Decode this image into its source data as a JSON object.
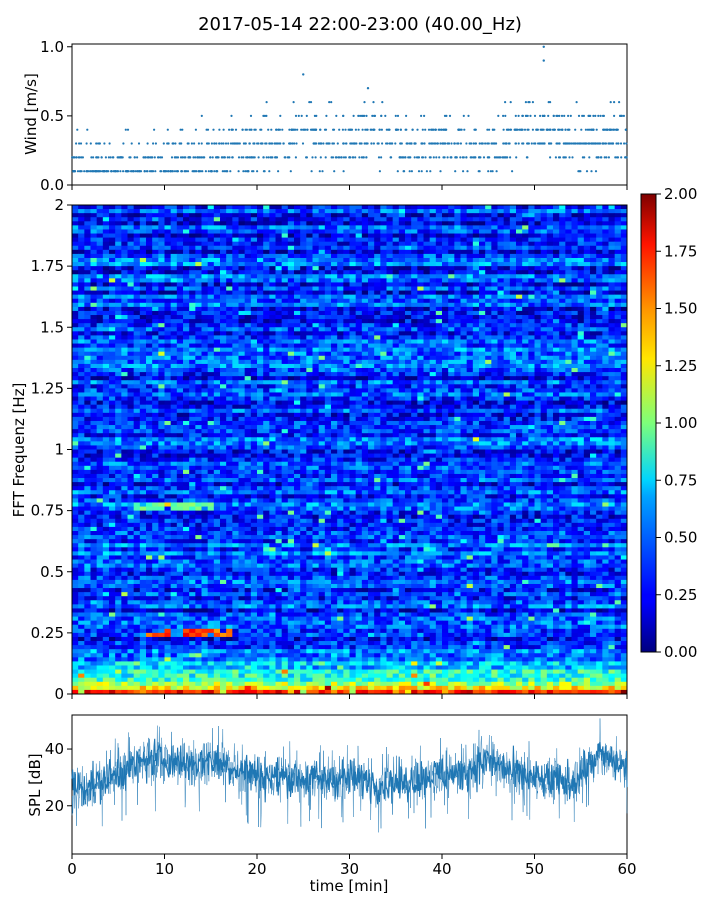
{
  "title": "2017-05-14 22:00-23:00 (40.00_Hz)",
  "chart_data": [
    {
      "type": "scatter",
      "panel": "wind",
      "ylabel": "Wind [m/s]",
      "xlabel": "",
      "xlim": [
        0,
        60
      ],
      "ylim": [
        0,
        1.02
      ],
      "yticks": [
        0.0,
        0.5,
        1.0
      ],
      "ytick_labels": [
        "0.0",
        "0.5",
        "1.0"
      ],
      "color": "#1f77b4",
      "trend": [
        {
          "x": 0,
          "y": 0.12
        },
        {
          "x": 5,
          "y": 0.13
        },
        {
          "x": 10,
          "y": 0.14
        },
        {
          "x": 15,
          "y": 0.2
        },
        {
          "x": 20,
          "y": 0.28
        },
        {
          "x": 25,
          "y": 0.35
        },
        {
          "x": 30,
          "y": 0.3
        },
        {
          "x": 33,
          "y": 0.38
        },
        {
          "x": 36,
          "y": 0.27
        },
        {
          "x": 40,
          "y": 0.3
        },
        {
          "x": 45,
          "y": 0.28
        },
        {
          "x": 50,
          "y": 0.45
        },
        {
          "x": 55,
          "y": 0.33
        },
        {
          "x": 60,
          "y": 0.35
        }
      ],
      "max_points": [
        {
          "x": 25,
          "y": 0.8
        },
        {
          "x": 32,
          "y": 0.7
        },
        {
          "x": 51,
          "y": 1.0
        },
        {
          "x": 51,
          "y": 0.9
        }
      ]
    },
    {
      "type": "heatmap",
      "panel": "spectrogram",
      "ylabel": "FFT Frequenz [Hz]",
      "xlabel": "",
      "xlim": [
        0,
        60
      ],
      "ylim": [
        0,
        2
      ],
      "yticks": [
        0,
        0.25,
        0.5,
        0.75,
        1,
        1.25,
        1.5,
        1.75,
        2
      ],
      "ytick_labels": [
        "0",
        "0.25",
        "0.5",
        "0.75",
        "1",
        "1.25",
        "1.5",
        "1.75",
        "2"
      ],
      "colormap": "jet",
      "clim": [
        0.0,
        2.0
      ],
      "colorbar_ticks": [
        0.0,
        0.25,
        0.5,
        0.75,
        1.0,
        1.25,
        1.5,
        1.75,
        2.0
      ],
      "colorbar_labels": [
        "0.00",
        "0.25",
        "0.50",
        "0.75",
        "1.00",
        "1.25",
        "1.50",
        "1.75",
        "2.00"
      ],
      "typical_value": 0.35,
      "hotspots": [
        {
          "t0": 8,
          "t1": 17,
          "f": 0.25,
          "value": 1.7
        },
        {
          "t0": 7,
          "t1": 15,
          "f": 0.77,
          "value": 1.0
        },
        {
          "t0": 0,
          "t1": 60,
          "f": 0.0,
          "value": 1.8
        }
      ]
    },
    {
      "type": "line",
      "panel": "spl",
      "ylabel": "SPL [dB]",
      "xlabel": "time [min]",
      "xlim": [
        0,
        60
      ],
      "ylim": [
        3,
        52
      ],
      "yticks": [
        20,
        40
      ],
      "ytick_labels": [
        "20",
        "40"
      ],
      "xticks": [
        0,
        10,
        20,
        30,
        40,
        50,
        60
      ],
      "xtick_labels": [
        "0",
        "10",
        "20",
        "30",
        "40",
        "50",
        "60"
      ],
      "color": "#1f77b4",
      "envelope": [
        {
          "x": 0,
          "mean": 27,
          "low": 15,
          "high": 37
        },
        {
          "x": 3,
          "mean": 28,
          "low": 16,
          "high": 38
        },
        {
          "x": 6,
          "mean": 33,
          "low": 22,
          "high": 42
        },
        {
          "x": 9,
          "mean": 37,
          "low": 26,
          "high": 46
        },
        {
          "x": 12,
          "mean": 35,
          "low": 24,
          "high": 44
        },
        {
          "x": 15,
          "mean": 36,
          "low": 25,
          "high": 45
        },
        {
          "x": 18,
          "mean": 33,
          "low": 22,
          "high": 42
        },
        {
          "x": 21,
          "mean": 30,
          "low": 19,
          "high": 39
        },
        {
          "x": 24,
          "mean": 30,
          "low": 20,
          "high": 39
        },
        {
          "x": 27,
          "mean": 29,
          "low": 18,
          "high": 38
        },
        {
          "x": 30,
          "mean": 30,
          "low": 19,
          "high": 39
        },
        {
          "x": 33,
          "mean": 28,
          "low": 18,
          "high": 37
        },
        {
          "x": 36,
          "mean": 28,
          "low": 17,
          "high": 37
        },
        {
          "x": 39,
          "mean": 31,
          "low": 21,
          "high": 40
        },
        {
          "x": 42,
          "mean": 31,
          "low": 21,
          "high": 40
        },
        {
          "x": 45,
          "mean": 36,
          "low": 25,
          "high": 45
        },
        {
          "x": 48,
          "mean": 31,
          "low": 21,
          "high": 40
        },
        {
          "x": 51,
          "mean": 29,
          "low": 19,
          "high": 38
        },
        {
          "x": 54,
          "mean": 28,
          "low": 18,
          "high": 37
        },
        {
          "x": 57,
          "mean": 38,
          "low": 27,
          "high": 47
        },
        {
          "x": 60,
          "mean": 33,
          "low": 22,
          "high": 42
        }
      ]
    }
  ]
}
